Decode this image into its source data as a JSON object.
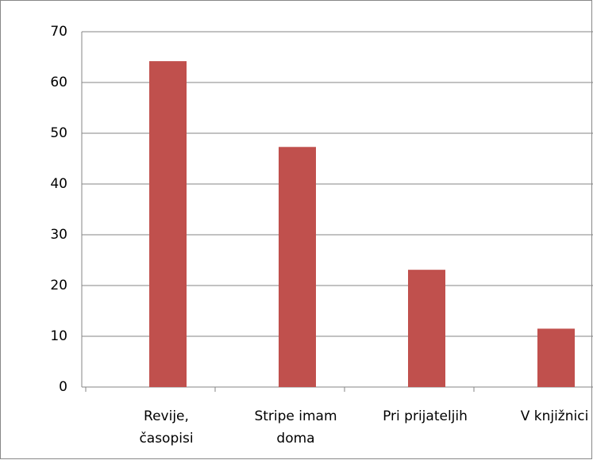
{
  "chart_data": {
    "type": "bar",
    "categories": [
      "Revije, časopisi",
      "Stripe imam doma",
      "Pri prijateljih",
      "V knjižnici"
    ],
    "values": [
      64.2,
      47.3,
      23.1,
      11.5
    ],
    "color": "#c0504d",
    "ylim": [
      0,
      70
    ],
    "yticks": [
      0,
      10,
      20,
      30,
      40,
      50,
      60,
      70
    ],
    "grid": true
  }
}
